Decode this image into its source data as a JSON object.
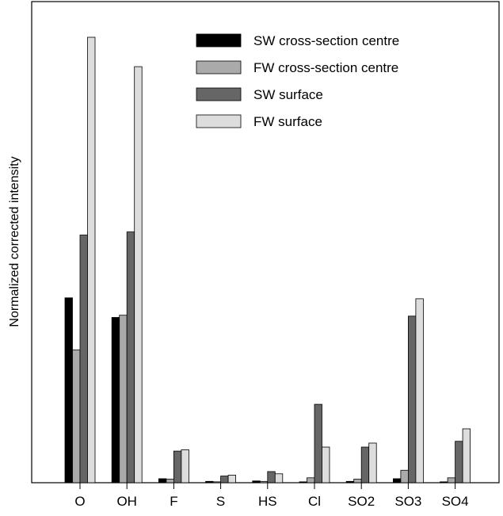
{
  "chart_data": {
    "type": "bar",
    "title": "",
    "xlabel": "",
    "ylabel": "Normalized corrected intensity",
    "categories": [
      "O",
      "OH",
      "F",
      "S",
      "HS",
      "Cl",
      "SO2",
      "SO3",
      "SO4"
    ],
    "series": [
      {
        "name": "SW cross-section centre",
        "color": "#000000",
        "values": [
          0.415,
          0.371,
          0.009,
          0.003,
          0.004,
          0.002,
          0.003,
          0.009,
          0.002
        ]
      },
      {
        "name": "FW cross-section centre",
        "color": "#aaaaaa",
        "values": [
          0.298,
          0.376,
          0.008,
          0.002,
          0.003,
          0.011,
          0.008,
          0.028,
          0.011
        ]
      },
      {
        "name": "SW surface",
        "color": "#666666",
        "values": [
          0.556,
          0.563,
          0.071,
          0.015,
          0.025,
          0.176,
          0.08,
          0.374,
          0.093
        ]
      },
      {
        "name": "FW surface",
        "color": "#dddddd",
        "values": [
          1.0,
          0.934,
          0.074,
          0.017,
          0.02,
          0.08,
          0.089,
          0.413,
          0.121
        ]
      }
    ],
    "ylim": [
      0,
      1.0
    ],
    "grid": false,
    "legend_position": "top-right"
  }
}
